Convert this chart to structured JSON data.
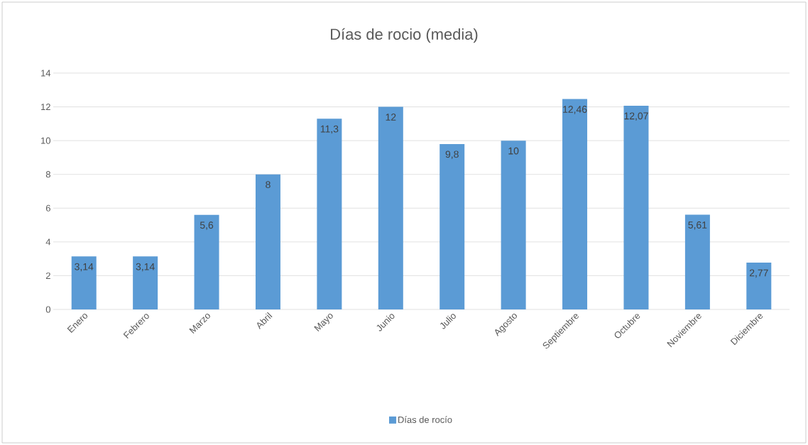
{
  "chart_data": {
    "type": "bar",
    "title": "Días de rocio (media)",
    "categories": [
      "Enero",
      "Febrero",
      "Marzo",
      "Abril",
      "Mayo",
      "Junio",
      "Julio",
      "Agosto",
      "Septiembre",
      "Octubre",
      "Noviembre",
      "Diciembre"
    ],
    "series": [
      {
        "name": "Días de rocío",
        "color": "#5b9bd5",
        "values": [
          3.14,
          3.14,
          5.6,
          8,
          11.3,
          12,
          9.8,
          10,
          12.46,
          12.07,
          5.61,
          2.77
        ],
        "value_labels": [
          "3,14",
          "3,14",
          "5,6",
          "8",
          "11,3",
          "12",
          "9,8",
          "10",
          "12,46",
          "12,07",
          "5,61",
          "2,77"
        ]
      }
    ],
    "ylim": [
      0,
      14
    ],
    "yticks": [
      0,
      2,
      4,
      6,
      8,
      10,
      12,
      14
    ],
    "grid": "y",
    "legend": "bottom"
  }
}
